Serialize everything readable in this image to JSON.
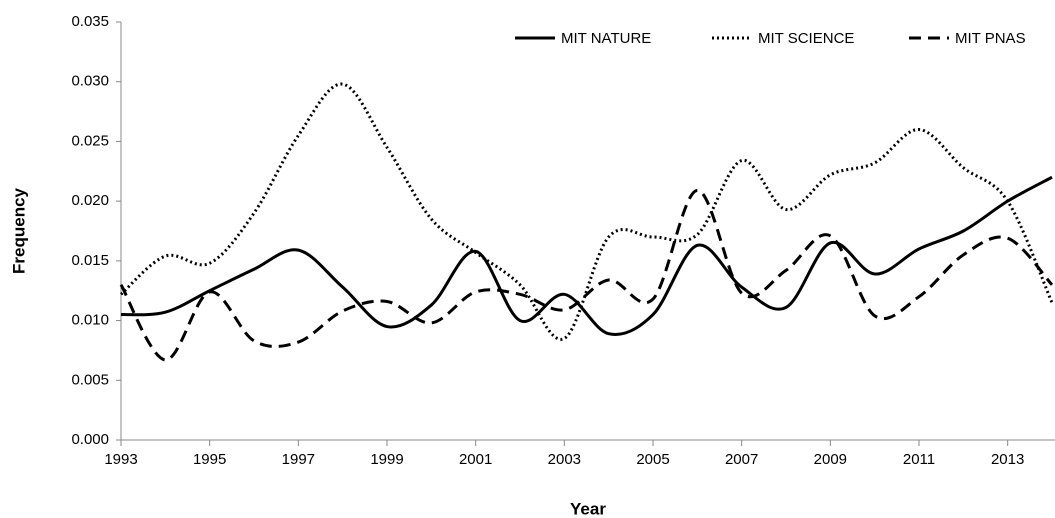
{
  "chart_data": {
    "type": "line",
    "x_label": "Year",
    "y_label": "Frequency",
    "x": [
      1993,
      1994,
      1995,
      1996,
      1997,
      1998,
      1999,
      2000,
      2001,
      2002,
      2003,
      2004,
      2005,
      2006,
      2007,
      2008,
      2009,
      2010,
      2011,
      2012,
      2013,
      2014
    ],
    "series": [
      {
        "name": "MIT NATURE",
        "color": "#000000",
        "dash": "solid",
        "values": [
          0.0105,
          0.0107,
          0.0125,
          0.0143,
          0.0159,
          0.0128,
          0.0095,
          0.0113,
          0.0158,
          0.01,
          0.0122,
          0.0089,
          0.0105,
          0.0163,
          0.0128,
          0.0111,
          0.0165,
          0.0139,
          0.016,
          0.0175,
          0.02,
          0.022
        ]
      },
      {
        "name": "MIT SCIENCE",
        "color": "#000000",
        "dash": "dotted",
        "values": [
          0.0122,
          0.0154,
          0.0148,
          0.019,
          0.0255,
          0.0298,
          0.0245,
          0.0185,
          0.0157,
          0.013,
          0.0085,
          0.017,
          0.017,
          0.0172,
          0.0234,
          0.0193,
          0.0222,
          0.0232,
          0.026,
          0.0228,
          0.02,
          0.0115
        ]
      },
      {
        "name": "MIT PNAS",
        "color": "#000000",
        "dash": "dashed",
        "values": [
          0.013,
          0.0067,
          0.0124,
          0.0083,
          0.0082,
          0.0108,
          0.0116,
          0.0098,
          0.0124,
          0.0122,
          0.0109,
          0.0134,
          0.0118,
          0.0209,
          0.0123,
          0.0142,
          0.0171,
          0.0104,
          0.012,
          0.0155,
          0.0169,
          0.013
        ]
      }
    ],
    "xlim": [
      1993,
      2014
    ],
    "xticks": [
      1993,
      1995,
      1997,
      1999,
      2001,
      2003,
      2005,
      2007,
      2009,
      2011,
      2013
    ],
    "ylim": [
      0,
      0.035
    ],
    "yticks": [
      {
        "value": 0,
        "label": "0.000"
      },
      {
        "value": 0.005,
        "label": "0.005"
      },
      {
        "value": 0.01,
        "label": "0.010"
      },
      {
        "value": 0.015,
        "label": "0.015"
      },
      {
        "value": 0.02,
        "label": "0.020"
      },
      {
        "value": 0.025,
        "label": "0.025"
      },
      {
        "value": 0.03,
        "label": "0.030"
      },
      {
        "value": 0.035,
        "label": "0.035"
      }
    ],
    "legend": "top-right",
    "grid": false
  }
}
